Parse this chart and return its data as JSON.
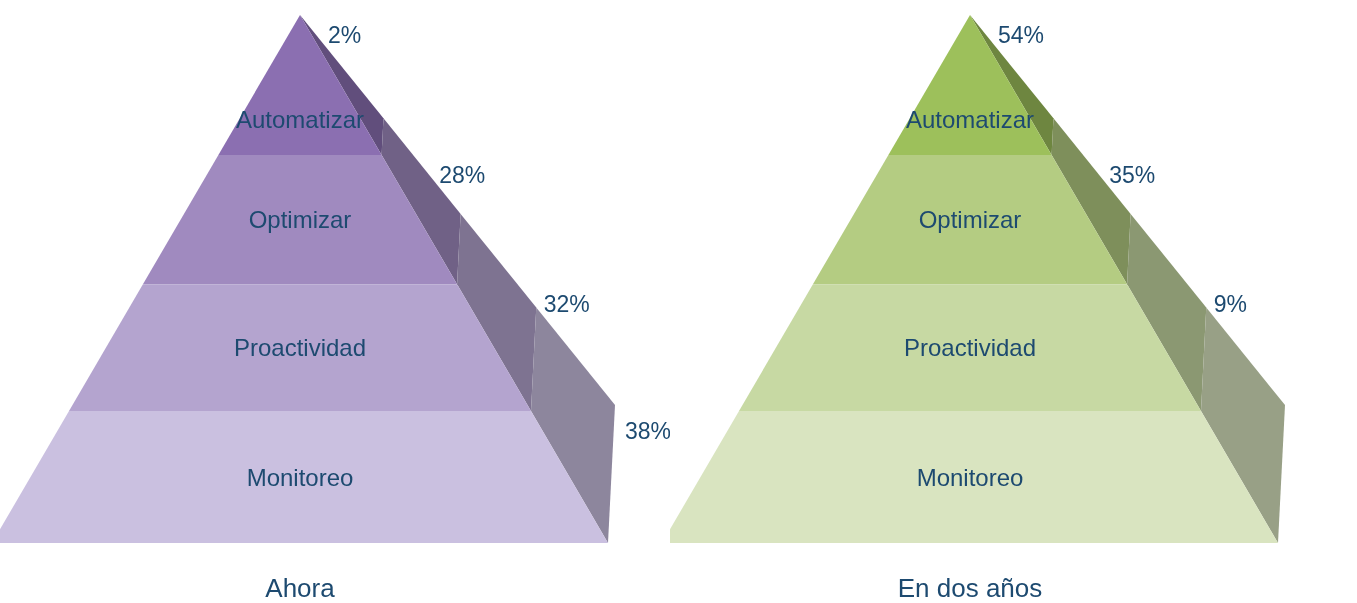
{
  "chart_data": [
    {
      "type": "other",
      "title": "Ahora",
      "categories": [
        "Automatizar",
        "Optimizar",
        "Proactividad",
        "Monitoreo"
      ],
      "values": [
        2,
        28,
        32,
        38
      ],
      "value_labels": [
        "2%",
        "28%",
        "32%",
        "38%"
      ],
      "colors": [
        "#8b6fb1",
        "#a08abf",
        "#b4a4cf",
        "#cac0e0"
      ]
    },
    {
      "type": "other",
      "title": "En dos años",
      "categories": [
        "Automatizar",
        "Optimizar",
        "Proactividad",
        "Monitoreo"
      ],
      "values": [
        54,
        35,
        9,
        null
      ],
      "value_labels": [
        "54%",
        "35%",
        "9%",
        null
      ],
      "colors": [
        "#9dc05b",
        "#b4cc82",
        "#c7d9a3",
        "#d9e4c0"
      ]
    }
  ]
}
